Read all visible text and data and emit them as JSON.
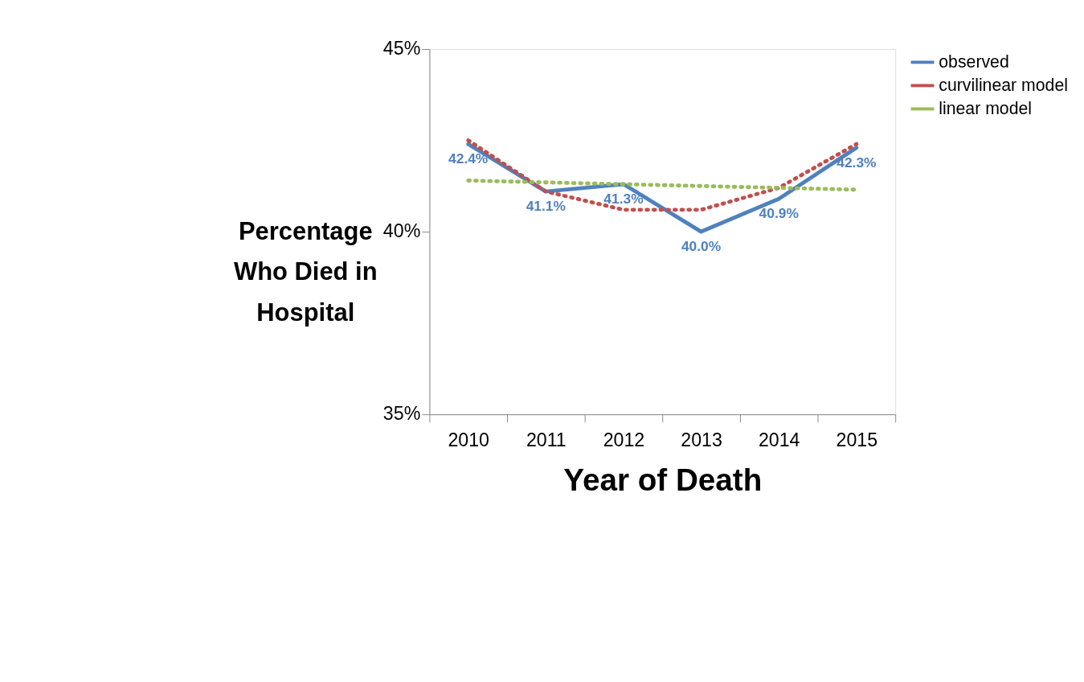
{
  "chart_data": {
    "type": "line",
    "xlabel": "Year of Death",
    "ylabel": "Percentage Who Died in Hospital",
    "categories": [
      "2010",
      "2011",
      "2012",
      "2013",
      "2014",
      "2015"
    ],
    "series": [
      {
        "name": "observed",
        "color": "#4f81bd",
        "line_style": "solid",
        "values": [
          42.4,
          41.1,
          41.3,
          40.0,
          40.9,
          42.3
        ],
        "value_labels": [
          "42.4%",
          "41.1%",
          "41.3%",
          "40.0%",
          "40.9%",
          "42.3%"
        ]
      },
      {
        "name": "curvilinear model",
        "color": "#c0504d",
        "line_style": "dotted",
        "values": [
          42.5,
          41.1,
          40.6,
          40.6,
          41.2,
          42.4
        ]
      },
      {
        "name": "linear model",
        "color": "#9bbb59",
        "line_style": "dotted",
        "values": [
          41.4,
          41.35,
          41.3,
          41.25,
          41.2,
          41.15
        ]
      }
    ],
    "ylim": [
      35,
      45
    ],
    "yticks": [
      {
        "value": 35,
        "label": "35%"
      },
      {
        "value": 40,
        "label": "40%"
      },
      {
        "value": 45,
        "label": "45%"
      }
    ],
    "grid": false,
    "legend": "right",
    "marker": "none"
  }
}
